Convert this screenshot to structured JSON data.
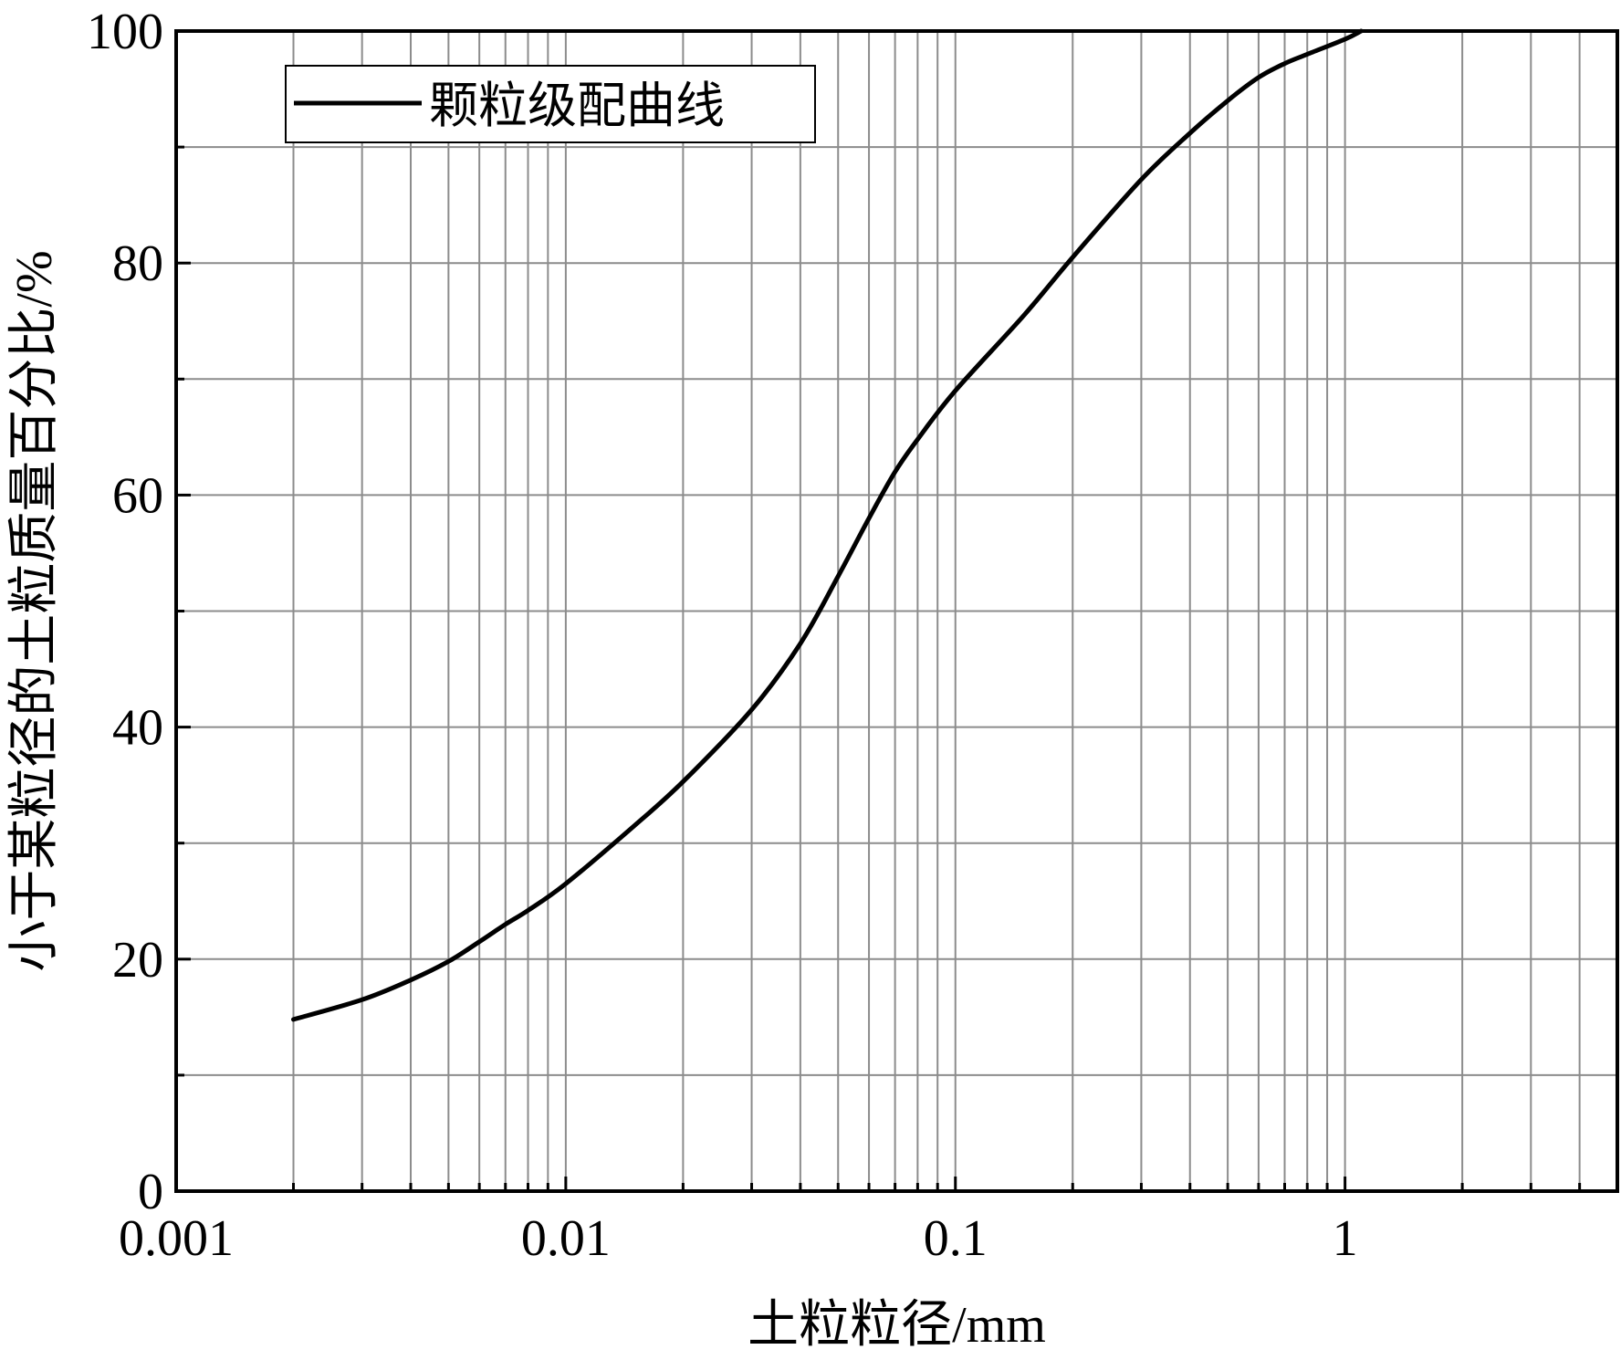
{
  "chart_data": {
    "type": "line",
    "xlabel": "土粒粒径/mm",
    "ylabel": "小于某粒径的土粒质量百分比/%",
    "x_scale": "log",
    "xlim": [
      0.001,
      5
    ],
    "ylim": [
      0,
      100
    ],
    "x_ticks": [
      0.001,
      0.01,
      0.1,
      1
    ],
    "x_tick_labels": [
      "0.001",
      "0.01",
      "0.1",
      "1"
    ],
    "y_ticks": [
      0,
      20,
      40,
      60,
      80,
      100
    ],
    "y_tick_labels": [
      "0",
      "20",
      "40",
      "60",
      "80",
      "100"
    ],
    "grid": true,
    "legend_position": "top-left",
    "series": [
      {
        "name": "颗粒级配曲线",
        "color": "#000000",
        "x": [
          0.002,
          0.003,
          0.004,
          0.005,
          0.006,
          0.007,
          0.008,
          0.01,
          0.015,
          0.02,
          0.03,
          0.04,
          0.05,
          0.06,
          0.07,
          0.08,
          0.1,
          0.15,
          0.2,
          0.3,
          0.4,
          0.5,
          0.6,
          0.7,
          0.8,
          1.0,
          1.1
        ],
        "y": [
          14.8,
          16.5,
          18.2,
          19.8,
          21.5,
          23.0,
          24.2,
          26.5,
          31.5,
          35.3,
          41.5,
          47.2,
          53.0,
          58.0,
          62.0,
          64.8,
          69.0,
          75.5,
          80.5,
          87.2,
          91.2,
          94.0,
          96.0,
          97.2,
          98.0,
          99.3,
          100.0
        ]
      }
    ]
  }
}
